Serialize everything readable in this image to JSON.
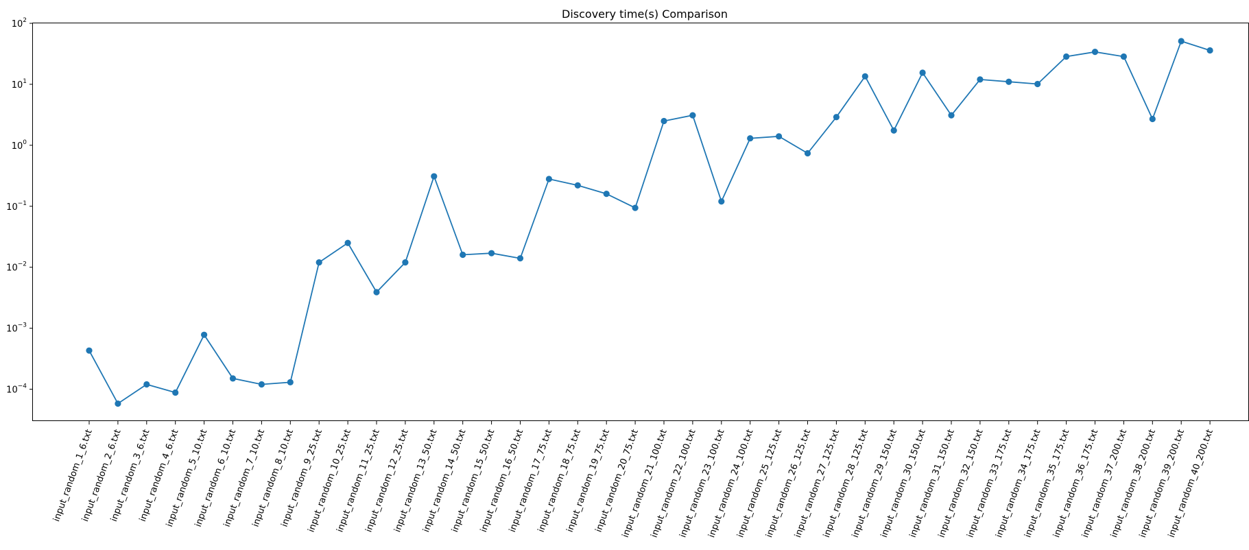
{
  "chart_data": {
    "type": "line",
    "title": "Discovery time(s) Comparison",
    "xlabel": "",
    "ylabel": "",
    "yscale": "log",
    "ylim": [
      3e-05,
      100
    ],
    "yticks": [
      {
        "value": 100,
        "base": "10",
        "exp": "2"
      },
      {
        "value": 10,
        "base": "10",
        "exp": "1"
      },
      {
        "value": 1,
        "base": "10",
        "exp": "0"
      },
      {
        "value": 0.1,
        "base": "10",
        "exp": "−1"
      },
      {
        "value": 0.01,
        "base": "10",
        "exp": "−2"
      },
      {
        "value": 0.001,
        "base": "10",
        "exp": "−3"
      },
      {
        "value": 0.0001,
        "base": "10",
        "exp": "−4"
      }
    ],
    "grid": false,
    "color": "#1f77b4",
    "categories": [
      "input_random_1_6.txt",
      "input_random_2_6.txt",
      "input_random_3_6.txt",
      "input_random_4_6.txt",
      "input_random_5_10.txt",
      "input_random_6_10.txt",
      "input_random_7_10.txt",
      "input_random_8_10.txt",
      "input_random_9_25.txt",
      "input_random_10_25.txt",
      "input_random_11_25.txt",
      "input_random_12_25.txt",
      "input_random_13_50.txt",
      "input_random_14_50.txt",
      "input_random_15_50.txt",
      "input_random_16_50.txt",
      "input_random_17_75.txt",
      "input_random_18_75.txt",
      "input_random_19_75.txt",
      "input_random_20_75.txt",
      "input_random_21_100.txt",
      "input_random_22_100.txt",
      "input_random_23_100.txt",
      "input_random_24_100.txt",
      "input_random_25_125.txt",
      "input_random_26_125.txt",
      "input_random_27_125.txt",
      "input_random_28_125.txt",
      "input_random_29_150.txt",
      "input_random_30_150.txt",
      "input_random_31_150.txt",
      "input_random_32_150.txt",
      "input_random_33_175.txt",
      "input_random_34_175.txt",
      "input_random_35_175.txt",
      "input_random_36_175.txt",
      "input_random_37_200.txt",
      "input_random_38_200.txt",
      "input_random_39_200.txt",
      "input_random_40_200.txt"
    ],
    "values": [
      0.00043,
      5.8e-05,
      0.00012,
      8.8e-05,
      0.00078,
      0.00015,
      0.00012,
      0.00013,
      0.012,
      0.025,
      0.0039,
      0.012,
      0.31,
      0.016,
      0.017,
      0.014,
      0.28,
      0.22,
      0.16,
      0.094,
      2.5,
      3.1,
      0.12,
      1.3,
      1.4,
      0.74,
      2.9,
      13.5,
      1.75,
      15.5,
      3.1,
      12.0,
      11.0,
      10.1,
      28.5,
      34.0,
      28.5,
      2.7,
      51.0,
      36.0
    ]
  }
}
